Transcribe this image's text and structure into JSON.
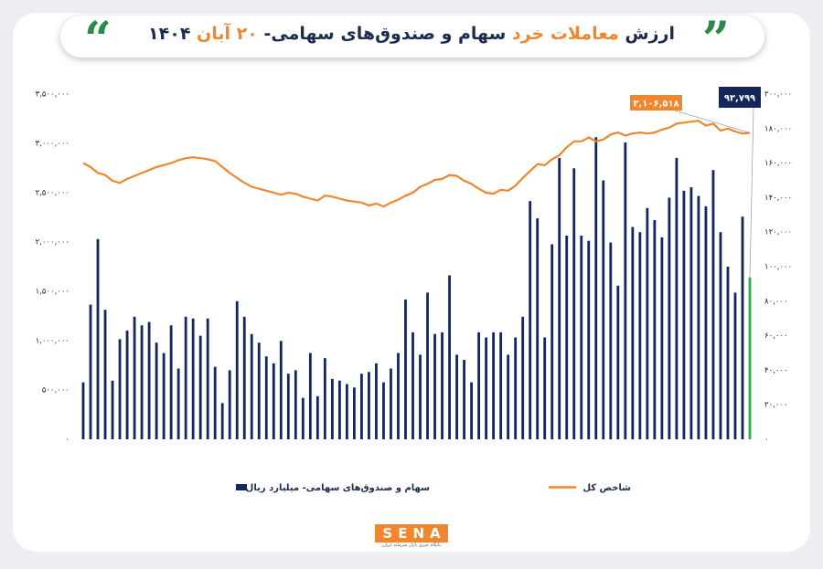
{
  "chart_data": {
    "type": "bar",
    "title_parts": [
      "ارزش",
      "معاملات خرد",
      "سهام و صندوق‌های سهامی-",
      "۲۰ آبان",
      "۱۴۰۴"
    ],
    "categories": [
      null,
      null,
      null,
      null,
      null,
      null,
      null,
      null,
      null,
      null,
      null,
      null,
      null,
      null,
      null,
      null,
      null,
      null,
      null,
      null,
      null,
      null,
      null,
      null,
      null,
      null,
      null,
      null,
      null,
      null,
      null,
      null,
      null,
      null,
      null,
      null,
      null,
      null,
      null,
      null,
      null,
      null,
      null,
      null,
      null,
      null,
      null,
      null,
      null,
      null,
      null,
      null,
      null,
      null,
      null,
      null,
      null,
      null,
      null,
      null,
      null,
      null,
      null,
      null,
      null,
      null,
      null,
      null,
      null,
      null,
      null,
      null,
      null,
      null,
      null,
      null,
      null,
      null,
      null,
      null,
      null,
      null,
      null,
      null,
      null,
      null,
      null,
      null,
      null,
      null,
      null,
      null
    ],
    "series": [
      {
        "name": "سهام و صندوق‌های سهامی- میلیارد ریال",
        "type": "bar",
        "axis": "y2",
        "color": "#13275b",
        "last_color": "#23b04a",
        "values": [
          33000,
          78000,
          116000,
          75000,
          34000,
          58000,
          63000,
          71000,
          66000,
          68000,
          56000,
          50000,
          66000,
          41000,
          71000,
          70000,
          60000,
          70000,
          42000,
          21000,
          40000,
          80000,
          71000,
          61000,
          56000,
          48000,
          44000,
          57000,
          38000,
          40000,
          24000,
          50000,
          25000,
          47000,
          35000,
          34000,
          32000,
          30000,
          38000,
          39000,
          44000,
          33000,
          41000,
          50000,
          81000,
          62000,
          49000,
          85000,
          61000,
          62000,
          95000,
          49000,
          46000,
          33000,
          62000,
          59000,
          62000,
          62000,
          49000,
          59000,
          71000,
          138000,
          128000,
          59000,
          113000,
          163000,
          118000,
          157000,
          118000,
          115000,
          175000,
          150000,
          114000,
          89000,
          172000,
          123000,
          120000,
          134000,
          127000,
          117000,
          140000,
          163000,
          144000,
          146000,
          141000,
          135000,
          156000,
          120000,
          100000,
          85000,
          129000,
          93799
        ],
        "value_labels": [
          null,
          null,
          null,
          null,
          null,
          null,
          null,
          null,
          null,
          null,
          null,
          null,
          null,
          null,
          null,
          null,
          null,
          null,
          null,
          null,
          null,
          null,
          null,
          null,
          null,
          null,
          null,
          null,
          null,
          null,
          null,
          null,
          null,
          null,
          null,
          null,
          null,
          null,
          null,
          null,
          null,
          null,
          null,
          null,
          null,
          null,
          null,
          null,
          null,
          null,
          null,
          null,
          null,
          null,
          null,
          null,
          null,
          null,
          null,
          null,
          null,
          null,
          null,
          null,
          null,
          null,
          null,
          null,
          null,
          null,
          null,
          null,
          null,
          null,
          null,
          null,
          null,
          null,
          null,
          null,
          null,
          null,
          null,
          null,
          null,
          null,
          null,
          null,
          null,
          null,
          null,
          "۹۳,۷۹۹"
        ]
      },
      {
        "name": "شاخص کل",
        "type": "line",
        "axis": "y",
        "color": "#f0862e",
        "values": [
          2800000,
          2760000,
          2700000,
          2680000,
          2620000,
          2600000,
          2640000,
          2670000,
          2700000,
          2730000,
          2760000,
          2780000,
          2800000,
          2830000,
          2850000,
          2860000,
          2850000,
          2840000,
          2820000,
          2760000,
          2700000,
          2650000,
          2600000,
          2560000,
          2540000,
          2520000,
          2500000,
          2480000,
          2500000,
          2490000,
          2460000,
          2440000,
          2420000,
          2470000,
          2460000,
          2440000,
          2420000,
          2410000,
          2400000,
          2370000,
          2390000,
          2360000,
          2400000,
          2430000,
          2470000,
          2500000,
          2560000,
          2590000,
          2630000,
          2640000,
          2680000,
          2670000,
          2620000,
          2590000,
          2540000,
          2500000,
          2490000,
          2530000,
          2520000,
          2570000,
          2650000,
          2720000,
          2790000,
          2780000,
          2840000,
          2880000,
          2960000,
          3020000,
          3020000,
          3060000,
          3020000,
          3040000,
          3090000,
          3110000,
          3080000,
          3100000,
          3110000,
          3100000,
          3110000,
          3140000,
          3160000,
          3200000,
          3210000,
          3220000,
          3230000,
          3180000,
          3200000,
          3130000,
          3150000,
          3120000,
          3100000,
          3106518
        ],
        "value_labels": [
          null,
          null,
          null,
          null,
          null,
          null,
          null,
          null,
          null,
          null,
          null,
          null,
          null,
          null,
          null,
          null,
          null,
          null,
          null,
          null,
          null,
          null,
          null,
          null,
          null,
          null,
          null,
          null,
          null,
          null,
          null,
          null,
          null,
          null,
          null,
          null,
          null,
          null,
          null,
          null,
          null,
          null,
          null,
          null,
          null,
          null,
          null,
          null,
          null,
          null,
          null,
          null,
          null,
          null,
          null,
          null,
          null,
          null,
          null,
          null,
          null,
          null,
          null,
          null,
          null,
          null,
          null,
          null,
          null,
          null,
          null,
          null,
          null,
          null,
          null,
          null,
          null,
          null,
          null,
          null,
          null,
          null,
          null,
          null,
          null,
          null,
          null,
          null,
          null,
          null,
          null,
          "۳,۱۰۶,۵۱۸"
        ]
      }
    ],
    "ylim": [
      0,
      3500000
    ],
    "yticks": [
      {
        "value": 0,
        "label": "۰"
      },
      {
        "value": 500000,
        "label": "۵۰۰,۰۰۰"
      },
      {
        "value": 1000000,
        "label": "۱,۰۰۰,۰۰۰"
      },
      {
        "value": 1500000,
        "label": "۱,۵۰۰,۰۰۰"
      },
      {
        "value": 2000000,
        "label": "۲,۰۰۰,۰۰۰"
      },
      {
        "value": 2500000,
        "label": "۲,۵۰۰,۰۰۰"
      },
      {
        "value": 3000000,
        "label": "۳,۰۰۰,۰۰۰"
      },
      {
        "value": 3500000,
        "label": "۳,۵۰۰,۰۰۰"
      }
    ],
    "y2lim": [
      0,
      200000
    ],
    "y2ticks": [
      {
        "value": 0,
        "label": "۰"
      },
      {
        "value": 20000,
        "label": "۲۰,۰۰۰"
      },
      {
        "value": 40000,
        "label": "۴۰,۰۰۰"
      },
      {
        "value": 60000,
        "label": "۶۰,۰۰۰"
      },
      {
        "value": 80000,
        "label": "۸۰,۰۰۰"
      },
      {
        "value": 100000,
        "label": "۱۰۰,۰۰۰"
      },
      {
        "value": 120000,
        "label": "۱۲۰,۰۰۰"
      },
      {
        "value": 140000,
        "label": "۱۴۰,۰۰۰"
      },
      {
        "value": 160000,
        "label": "۱۶۰,۰۰۰"
      },
      {
        "value": 180000,
        "label": "۱۸۰,۰۰۰"
      },
      {
        "value": 200000,
        "label": "۲۰۰,۰۰۰"
      }
    ],
    "grid": false
  },
  "footer": {
    "logo": "SENA",
    "tagline": "پایگاه خبری بازار سرمایه ایران"
  }
}
